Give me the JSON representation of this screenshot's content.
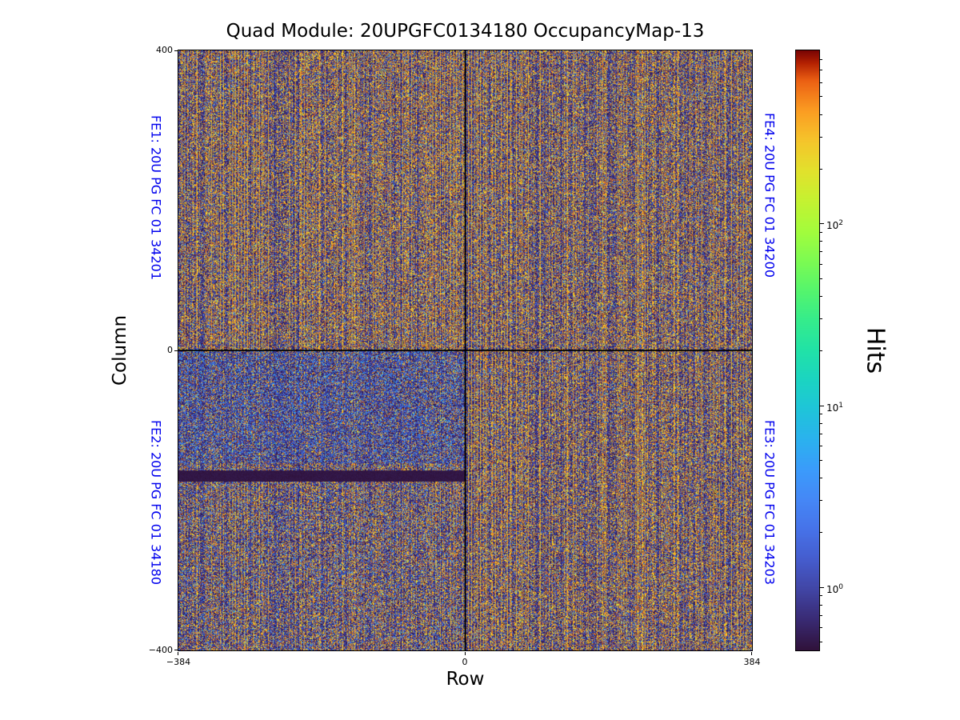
{
  "chart_data": {
    "type": "heatmap",
    "title": "Quad Module: 20UPGFC0134180 OccupancyMap-13",
    "xlabel": "Row",
    "ylabel": "Column",
    "x_range": [
      -384,
      384
    ],
    "y_range": [
      -400,
      400
    ],
    "x_bins": 768,
    "y_bins": 800,
    "xticks": [
      {
        "value": -384,
        "label": "−384"
      },
      {
        "value": 0,
        "label": "0"
      },
      {
        "value": 384,
        "label": "384"
      }
    ],
    "yticks": [
      {
        "value": 400,
        "label": "400"
      },
      {
        "value": 0,
        "label": "0"
      },
      {
        "value": -400,
        "label": "−400"
      }
    ],
    "colorbar": {
      "label": "Hits",
      "scale": "log",
      "vmin": 0.45,
      "vmax": 900,
      "colormap": "turbo",
      "major_ticks": [
        {
          "value": 1,
          "base": "10",
          "exp": "0"
        },
        {
          "value": 10,
          "base": "10",
          "exp": "1"
        },
        {
          "value": 100,
          "base": "10",
          "exp": "2"
        }
      ],
      "gradient_stops": [
        [
          0.0,
          "#30123b"
        ],
        [
          0.05,
          "#392a73"
        ],
        [
          0.1,
          "#4145a4"
        ],
        [
          0.15,
          "#455ccd"
        ],
        [
          0.2,
          "#4672e8"
        ],
        [
          0.25,
          "#4587f6"
        ],
        [
          0.3,
          "#3b9bfb"
        ],
        [
          0.35,
          "#2bb1ef"
        ],
        [
          0.4,
          "#1fc4da"
        ],
        [
          0.45,
          "#1bd4c2"
        ],
        [
          0.5,
          "#21e2a7"
        ],
        [
          0.55,
          "#35ec8c"
        ],
        [
          0.6,
          "#55f56d"
        ],
        [
          0.65,
          "#7dfb52"
        ],
        [
          0.7,
          "#a4fc3c"
        ],
        [
          0.75,
          "#c5f231"
        ],
        [
          0.8,
          "#e2e12c"
        ],
        [
          0.85,
          "#f5c52b"
        ],
        [
          0.9,
          "#fb9d22"
        ],
        [
          0.95,
          "#ec6114"
        ],
        [
          0.98,
          "#b32102"
        ],
        [
          1.0,
          "#7a0403"
        ]
      ]
    },
    "quadrant_labels": [
      {
        "id": "FE1",
        "text": "FE1: 20U PG FC 01 34201",
        "position": "left-top"
      },
      {
        "id": "FE2",
        "text": "FE2: 20U PG FC 01 34180",
        "position": "left-bottom"
      },
      {
        "id": "FE4",
        "text": "FE4: 20U PG FC 01 34200",
        "position": "right-top"
      },
      {
        "id": "FE3",
        "text": "FE3: 20U PG FC 01 34203",
        "position": "right-bottom"
      }
    ],
    "annotations_color": "#0000ee",
    "features": {
      "occupancy": "dense per-pixel hit-count noise with vertical striping; background pixels 0.45–1 hits (dark purple), hot stripe pixels ~200–600 hits (orange), scattered 1–7 hit pixels (blue)",
      "dead_band": {
        "row_range": [
          -384,
          0
        ],
        "col_range": [
          -175,
          -160
        ],
        "value": "masked / ~0 hits"
      },
      "boundary_lines": {
        "row": 0,
        "col": 0
      },
      "fe2_region": "lower-left quadrant darker with more low-hit blue speckle"
    },
    "noise": {
      "seed": 1337,
      "stripe_period": 4,
      "stripe_probs": [
        0.75,
        0.18,
        0.45,
        0.18
      ],
      "blue_speckle_prob": 0.1,
      "fe2_split": -150,
      "fe2_upper": {
        "orange_factor": 0.45,
        "blue_prob": 0.28
      },
      "fe2_lower": {
        "orange_factor": 0.8,
        "blue_prob": 0.16
      }
    }
  }
}
